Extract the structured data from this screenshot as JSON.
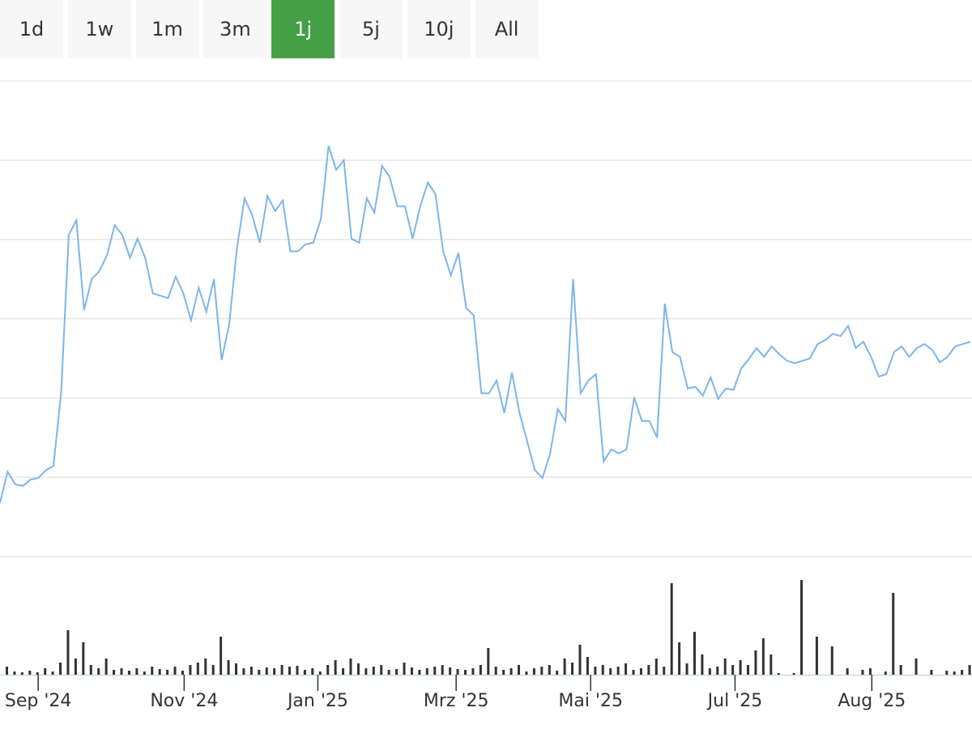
{
  "range_buttons": {
    "labels": [
      "1d",
      "1w",
      "1m",
      "3m",
      "1j",
      "5j",
      "10j",
      "All"
    ],
    "active": 4
  },
  "chart_data": {
    "type": "line",
    "color": "#7cb5ec",
    "grid": true,
    "ylim": [
      0,
      6
    ],
    "yticks": [
      0,
      1,
      2,
      3,
      4,
      5,
      6
    ],
    "xlim": [
      0,
      127
    ],
    "xticks": [
      {
        "value": 5,
        "label": "Sep '24"
      },
      {
        "value": 24.1,
        "label": "Nov '24"
      },
      {
        "value": 41.6,
        "label": "Jan '25"
      },
      {
        "value": 59.7,
        "label": "Mrz '25"
      },
      {
        "value": 77.3,
        "label": "Mai '25"
      },
      {
        "value": 96.2,
        "label": "Jul '25"
      },
      {
        "value": 114.1,
        "label": "Aug '25"
      }
    ],
    "values": [
      0.68,
      1.07,
      0.91,
      0.89,
      0.97,
      0.99,
      1.09,
      1.14,
      2.07,
      4.06,
      4.24,
      3.11,
      3.5,
      3.6,
      3.8,
      4.18,
      4.06,
      3.77,
      4.01,
      3.77,
      3.32,
      3.29,
      3.26,
      3.53,
      3.32,
      2.98,
      3.39,
      3.09,
      3.5,
      2.48,
      2.93,
      3.88,
      4.52,
      4.31,
      3.96,
      4.55,
      4.36,
      4.49,
      3.85,
      3.85,
      3.94,
      3.96,
      4.26,
      5.18,
      4.88,
      5.0,
      4.01,
      3.96,
      4.52,
      4.34,
      4.93,
      4.79,
      4.42,
      4.42,
      4.01,
      4.42,
      4.72,
      4.57,
      3.85,
      3.55,
      3.83,
      3.14,
      3.04,
      2.06,
      2.06,
      2.22,
      1.81,
      2.32,
      1.81,
      1.45,
      1.09,
      0.99,
      1.3,
      1.86,
      1.71,
      3.5,
      2.06,
      2.22,
      2.3,
      1.2,
      1.35,
      1.3,
      1.35,
      2.01,
      1.71,
      1.71,
      1.5,
      3.19,
      2.58,
      2.52,
      2.12,
      2.14,
      2.03,
      2.26,
      1.99,
      2.12,
      2.1,
      2.37,
      2.49,
      2.63,
      2.52,
      2.65,
      2.55,
      2.47,
      2.44,
      2.47,
      2.5,
      2.68,
      2.73,
      2.81,
      2.78,
      2.91,
      2.63,
      2.71,
      2.52,
      2.27,
      2.3,
      2.58,
      2.65,
      2.52,
      2.63,
      2.68,
      2.61,
      2.45,
      2.52,
      2.65,
      2.68,
      2.71
    ],
    "volume": {
      "color": "#333333",
      "ylim": [
        0,
        120
      ],
      "values": [
        10,
        4,
        3,
        5,
        3,
        8,
        4,
        15,
        55,
        20,
        40,
        12,
        8,
        20,
        6,
        8,
        5,
        8,
        4,
        10,
        7,
        6,
        10,
        5,
        12,
        15,
        20,
        12,
        47,
        18,
        14,
        8,
        10,
        6,
        9,
        8,
        12,
        10,
        11,
        6,
        8,
        4,
        12,
        18,
        8,
        20,
        14,
        8,
        10,
        12,
        6,
        7,
        15,
        9,
        6,
        8,
        10,
        12,
        9,
        7,
        6,
        8,
        12,
        33,
        10,
        6,
        8,
        12,
        4,
        8,
        10,
        12,
        5,
        20,
        15,
        37,
        22,
        10,
        12,
        8,
        10,
        14,
        6,
        8,
        12,
        20,
        10,
        113,
        40,
        14,
        53,
        25,
        8,
        10,
        20,
        12,
        18,
        12,
        30,
        45,
        25,
        2,
        0,
        2,
        117,
        0,
        47,
        0,
        35,
        0,
        8,
        0,
        6,
        8,
        0,
        4,
        101,
        12,
        0,
        20,
        0,
        6,
        0,
        5,
        4,
        6,
        12,
        15
      ]
    }
  }
}
